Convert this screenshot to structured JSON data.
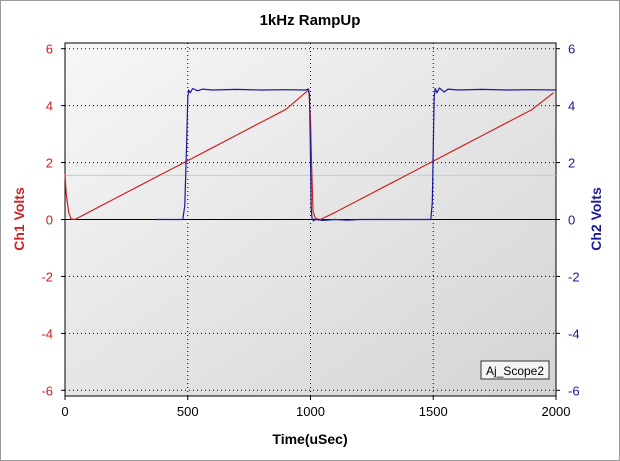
{
  "chart_data": {
    "type": "line",
    "title": "1kHz RampUp",
    "xlabel": "Time(uSec)",
    "ylabel_left": "Ch1 Volts",
    "ylabel_right": "Ch2 Volts",
    "xlim": [
      0,
      2000
    ],
    "ylim_left": [
      -6.2,
      6.2
    ],
    "ylim_right": [
      -6.2,
      6.2
    ],
    "x_ticks": [
      "0",
      "500",
      "1000",
      "1500",
      "2000"
    ],
    "y_ticks_left": [
      "6",
      "4",
      "2",
      "0",
      "-2",
      "-4",
      "-6"
    ],
    "y_ticks_right": [
      "6",
      "4",
      "2",
      "0",
      "-2",
      "-4",
      "-6"
    ],
    "grid": true,
    "reference_line": 1.55,
    "series": [
      {
        "name": "Ch1",
        "axis": "left",
        "color": "#cc2222",
        "x": [
          0,
          5,
          15,
          25,
          40,
          100,
          200,
          300,
          400,
          500,
          600,
          700,
          800,
          900,
          985,
          993,
          1000,
          1005,
          1010,
          1020,
          1040,
          1100,
          1200,
          1300,
          1400,
          1500,
          1600,
          1700,
          1800,
          1900,
          1990
        ],
        "y": [
          1.6,
          0.9,
          0.25,
          0.02,
          0.0,
          0.27,
          0.72,
          1.17,
          1.62,
          2.07,
          2.52,
          2.97,
          3.42,
          3.87,
          4.5,
          4.58,
          3.5,
          1.8,
          0.3,
          0.03,
          0.0,
          0.25,
          0.7,
          1.15,
          1.6,
          2.05,
          2.5,
          2.95,
          3.4,
          3.85,
          4.45
        ]
      },
      {
        "name": "Ch2",
        "axis": "right",
        "color": "#1a1a99",
        "x": [
          370,
          480,
          488,
          495,
          500,
          504,
          510,
          520,
          540,
          560,
          600,
          700,
          800,
          900,
          980,
          990,
          996,
          1000,
          1003,
          1006,
          1012,
          1020,
          1050,
          1100,
          1150,
          1200,
          1230,
          1490,
          1496,
          1500,
          1504,
          1508,
          1515,
          1525,
          1545,
          1560,
          1600,
          1700,
          1800,
          1900,
          2000
        ],
        "y": [
          0.0,
          0.0,
          0.5,
          2.5,
          4.3,
          4.55,
          4.45,
          4.6,
          4.52,
          4.58,
          4.55,
          4.57,
          4.55,
          4.56,
          4.55,
          4.58,
          4.4,
          2.2,
          0.4,
          0.05,
          -0.05,
          0.0,
          -0.03,
          0.0,
          -0.02,
          0.0,
          0.0,
          0.0,
          0.6,
          2.6,
          4.3,
          4.6,
          4.45,
          4.62,
          4.48,
          4.58,
          4.55,
          4.57,
          4.55,
          4.56,
          4.55
        ]
      }
    ]
  },
  "legend_box": {
    "label": "Aj_Scope2"
  },
  "colors": {
    "ch1": "#cc2222",
    "ch2": "#1a1a99",
    "plot_bg_top": "#f7f7f7",
    "plot_bg_bottom": "#d4d4d4",
    "reference_line": "#a8d8dc"
  }
}
